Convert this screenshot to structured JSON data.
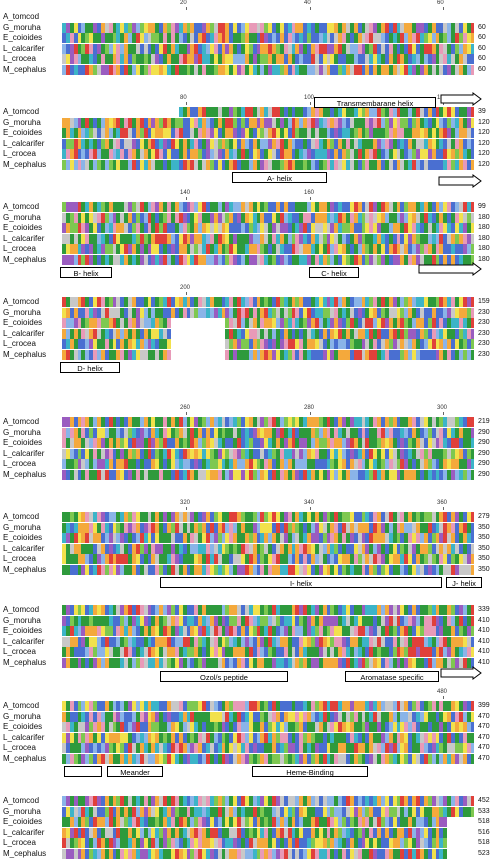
{
  "species": [
    "A_tomcod",
    "G_moruha",
    "E_coioides",
    "L_calcarifer",
    "L_crocea",
    "M_cephalus"
  ],
  "blocks": [
    {
      "ruler": [
        "20",
        "40",
        "60"
      ],
      "end_positions": [
        "",
        "60",
        "60",
        "60",
        "60",
        "60"
      ],
      "first_row_dotted": true
    },
    {
      "ruler": [
        "80",
        "100",
        "120"
      ],
      "end_positions": [
        "39",
        "120",
        "120",
        "120",
        "120",
        "120"
      ]
    },
    {
      "ruler": [
        "140",
        "160"
      ],
      "end_positions": [
        "99",
        "180",
        "180",
        "180",
        "180",
        "180"
      ]
    },
    {
      "ruler": [
        "200"
      ],
      "end_positions": [
        "159",
        "230",
        "230",
        "230",
        "230",
        "230"
      ]
    },
    {
      "ruler": [
        "260",
        "280",
        "300"
      ],
      "end_positions": [
        "219",
        "290",
        "290",
        "290",
        "290",
        "290"
      ]
    },
    {
      "ruler": [
        "320",
        "340",
        "360"
      ],
      "end_positions": [
        "279",
        "350",
        "350",
        "350",
        "350",
        "350"
      ]
    },
    {
      "ruler": [],
      "end_positions": [
        "339",
        "410",
        "410",
        "410",
        "410",
        "410"
      ]
    },
    {
      "ruler": [
        "480"
      ],
      "end_positions": [
        "399",
        "470",
        "470",
        "470",
        "470",
        "470"
      ]
    },
    {
      "ruler": [],
      "end_positions": [
        "452",
        "533",
        "518",
        "516",
        "518",
        "523"
      ]
    }
  ],
  "features": {
    "transmembrane_helix": "Transmembarane helix",
    "a_helix": "A- helix",
    "b_helix": "B- helix",
    "c_helix": "C- helix",
    "d_helix": "D- helix",
    "i_helix": "I- helix",
    "j_helix": "J- helix",
    "ozol_peptide": "Ozol/s peptide",
    "aromatase_specific": "Aromatase specific",
    "meander": "Meander",
    "heme_binding": "Heme-Binding"
  },
  "colors": {
    "green": "#2e9a3c",
    "lightgreen": "#7ec850",
    "yellow": "#f2e14c",
    "orange": "#f4a93c",
    "red": "#e0403a",
    "blue": "#4a6fd1",
    "lightblue": "#8ab4e8",
    "purple": "#9a5cc0",
    "pink": "#e89ab8",
    "cyan": "#3cb4c8",
    "gray": "#c8c8c8"
  }
}
